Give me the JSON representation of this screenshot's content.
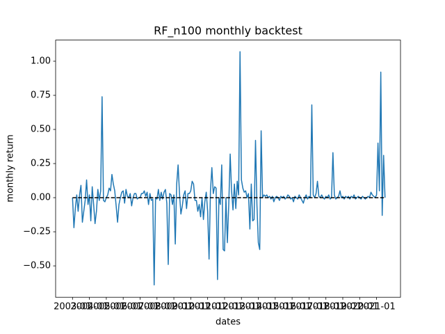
{
  "chart_data": {
    "type": "line",
    "title": "RF_n100 monthly backtest",
    "x_label": "dates",
    "y_label": "monthly return",
    "color": "#1f77b4",
    "x": [
      "2003-01",
      "2003-02",
      "2003-03",
      "2003-04",
      "2003-05",
      "2003-06",
      "2003-07",
      "2003-08",
      "2003-09",
      "2003-10",
      "2003-11",
      "2003-12",
      "2004-01",
      "2004-02",
      "2004-03",
      "2004-04",
      "2004-05",
      "2004-06",
      "2004-07",
      "2004-08",
      "2004-09",
      "2004-10",
      "2004-11",
      "2004-12",
      "2005-01",
      "2005-02",
      "2005-03",
      "2005-04",
      "2005-05",
      "2005-06",
      "2005-07",
      "2005-08",
      "2005-09",
      "2005-10",
      "2005-11",
      "2005-12",
      "2006-01",
      "2006-02",
      "2006-03",
      "2006-04",
      "2006-05",
      "2006-06",
      "2006-07",
      "2006-08",
      "2006-09",
      "2006-10",
      "2006-11",
      "2006-12",
      "2007-01",
      "2007-02",
      "2007-03",
      "2007-04",
      "2007-05",
      "2007-06",
      "2007-07",
      "2007-08",
      "2007-09",
      "2007-10",
      "2007-11",
      "2007-12",
      "2008-01",
      "2008-02",
      "2008-03",
      "2008-04",
      "2008-05",
      "2008-06",
      "2008-07",
      "2008-08",
      "2008-09",
      "2008-10",
      "2008-11",
      "2008-12",
      "2009-01",
      "2009-02",
      "2009-03",
      "2009-04",
      "2009-05",
      "2009-06",
      "2009-07",
      "2009-08",
      "2009-09",
      "2009-10",
      "2009-11",
      "2009-12",
      "2010-01",
      "2010-02",
      "2010-03",
      "2010-04",
      "2010-05",
      "2010-06",
      "2010-07",
      "2010-08",
      "2010-09",
      "2010-10",
      "2010-11",
      "2010-12",
      "2011-01",
      "2011-02",
      "2011-03",
      "2011-04",
      "2011-05",
      "2011-06",
      "2011-07",
      "2011-08",
      "2011-09",
      "2011-10",
      "2011-11",
      "2011-12",
      "2012-01",
      "2012-02",
      "2012-03",
      "2012-04",
      "2012-05",
      "2012-06",
      "2012-07",
      "2012-08",
      "2012-09",
      "2012-10",
      "2012-11",
      "2012-12",
      "2013-01",
      "2013-02",
      "2013-03",
      "2013-04",
      "2013-05",
      "2013-06",
      "2013-07",
      "2013-08",
      "2013-09",
      "2013-10",
      "2013-11",
      "2013-12",
      "2014-01",
      "2014-02",
      "2014-03",
      "2014-04",
      "2014-05",
      "2014-06",
      "2014-07",
      "2014-08",
      "2014-09",
      "2014-10",
      "2014-11",
      "2014-12",
      "2015-01",
      "2015-02",
      "2015-03",
      "2015-04",
      "2015-05",
      "2015-06",
      "2015-07",
      "2015-08",
      "2015-09",
      "2015-10",
      "2015-11",
      "2015-12",
      "2016-01",
      "2016-02",
      "2016-03",
      "2016-04",
      "2016-05",
      "2016-06",
      "2016-07",
      "2016-08",
      "2016-09",
      "2016-10",
      "2016-11",
      "2016-12",
      "2017-01",
      "2017-02",
      "2017-03",
      "2017-04",
      "2017-05",
      "2017-06",
      "2017-07",
      "2017-08",
      "2017-09",
      "2017-10",
      "2017-11",
      "2017-12",
      "2018-01",
      "2018-02",
      "2018-03",
      "2018-04",
      "2018-05",
      "2018-06",
      "2018-07",
      "2018-08",
      "2018-09",
      "2018-10",
      "2018-11",
      "2018-12",
      "2019-01",
      "2019-02",
      "2019-03",
      "2019-04",
      "2019-05",
      "2019-06",
      "2019-07",
      "2019-08",
      "2019-09",
      "2019-10",
      "2019-11",
      "2019-12",
      "2020-01",
      "2020-02",
      "2020-03",
      "2020-04",
      "2020-05",
      "2020-06",
      "2020-07",
      "2020-08",
      "2020-09",
      "2020-10",
      "2020-11",
      "2020-12",
      "2021-01",
      "2021-02",
      "2021-03",
      "2021-04",
      "2021-05",
      "2021-06",
      "2021-07"
    ],
    "values": [
      0.0,
      -0.22,
      -0.08,
      0.02,
      -0.1,
      0.02,
      0.09,
      -0.18,
      -0.1,
      -0.02,
      0.13,
      -0.05,
      0.02,
      -0.17,
      0.08,
      -0.05,
      -0.19,
      -0.1,
      0.06,
      -0.02,
      0.05,
      0.74,
      -0.02,
      -0.03,
      0.0,
      0.02,
      0.07,
      0.05,
      0.17,
      0.1,
      0.05,
      -0.06,
      -0.18,
      -0.05,
      0.0,
      0.04,
      0.05,
      -0.04,
      0.06,
      0.01,
      0.0,
      0.03,
      -0.06,
      0.0,
      0.03,
      0.03,
      -0.01,
      0.0,
      0.0,
      0.03,
      0.03,
      0.05,
      0.01,
      0.04,
      -0.05,
      0.03,
      -0.02,
      -0.01,
      -0.64,
      0.0,
      -0.01,
      0.06,
      -0.02,
      0.04,
      -0.01,
      0.04,
      0.06,
      -0.04,
      -0.49,
      0.03,
      0.02,
      -0.05,
      0.02,
      -0.34,
      0.1,
      0.24,
      0.03,
      -0.12,
      -0.06,
      0.02,
      0.05,
      -0.08,
      0.03,
      0.03,
      0.05,
      0.12,
      0.1,
      -0.02,
      -0.02,
      -0.1,
      -0.05,
      -0.14,
      0.0,
      -0.16,
      -0.03,
      0.04,
      -0.1,
      -0.45,
      0.05,
      0.22,
      0.03,
      0.08,
      0.07,
      -0.6,
      0.0,
      -0.05,
      0.24,
      -0.38,
      -0.39,
      0.0,
      -0.33,
      -0.05,
      0.32,
      0.05,
      -0.09,
      0.1,
      -0.08,
      0.12,
      0.02,
      1.07,
      0.13,
      0.07,
      0.04,
      0.05,
      0.0,
      0.03,
      -0.23,
      0.1,
      -0.17,
      -0.16,
      0.42,
      -0.05,
      -0.33,
      -0.38,
      0.49,
      0.0,
      0.02,
      0.01,
      0.02,
      0.0,
      0.01,
      -0.01,
      0.01,
      -0.03,
      0.0,
      0.01,
      0.0,
      -0.02,
      0.01,
      0.0,
      0.01,
      -0.01,
      0.0,
      0.02,
      0.01,
      -0.01,
      0.0,
      -0.03,
      0.01,
      0.0,
      -0.01,
      0.02,
      0.0,
      -0.02,
      -0.04,
      0.0,
      0.02,
      -0.01,
      0.01,
      0.0,
      0.68,
      0.02,
      0.0,
      0.03,
      0.12,
      0.01,
      0.0,
      0.02,
      0.0,
      -0.01,
      0.01,
      0.0,
      0.02,
      -0.01,
      0.0,
      0.33,
      0.02,
      -0.01,
      0.0,
      0.01,
      0.05,
      0.0,
      0.01,
      -0.01,
      0.01,
      0.0,
      0.01,
      -0.01,
      0.01,
      0.0,
      0.02,
      -0.01,
      0.0,
      0.01,
      0.0,
      -0.01,
      0.01,
      0.0,
      -0.01,
      0.0,
      0.01,
      0.0,
      0.04,
      0.02,
      0.01,
      0.0,
      0.02,
      0.4,
      0.05,
      0.92,
      -0.13,
      0.31,
      0.0
    ],
    "reference_line": {
      "y": 0,
      "color": "#000000",
      "dashed": true
    },
    "xlim": [
      "2002-01",
      "2022-06"
    ],
    "xticks": [
      "2003-01",
      "2004-01",
      "2005-01",
      "2006-01",
      "2007-01",
      "2008-01",
      "2009-01",
      "2010-01",
      "2011-01",
      "2012-01",
      "2013-01",
      "2014-01",
      "2015-01",
      "2016-01",
      "2017-01",
      "2018-01",
      "2019-01",
      "2020-01",
      "2021-01"
    ],
    "ylim": [
      -0.73,
      1.155
    ],
    "yticks": [
      {
        "value": -0.5,
        "label": "−0.50"
      },
      {
        "value": -0.25,
        "label": "−0.25"
      },
      {
        "value": 0,
        "label": "0.00"
      },
      {
        "value": 0.25,
        "label": "0.25"
      },
      {
        "value": 0.5,
        "label": "0.50"
      },
      {
        "value": 0.75,
        "label": "0.75"
      },
      {
        "value": 1.0,
        "label": "1.00"
      }
    ],
    "grid": false
  }
}
